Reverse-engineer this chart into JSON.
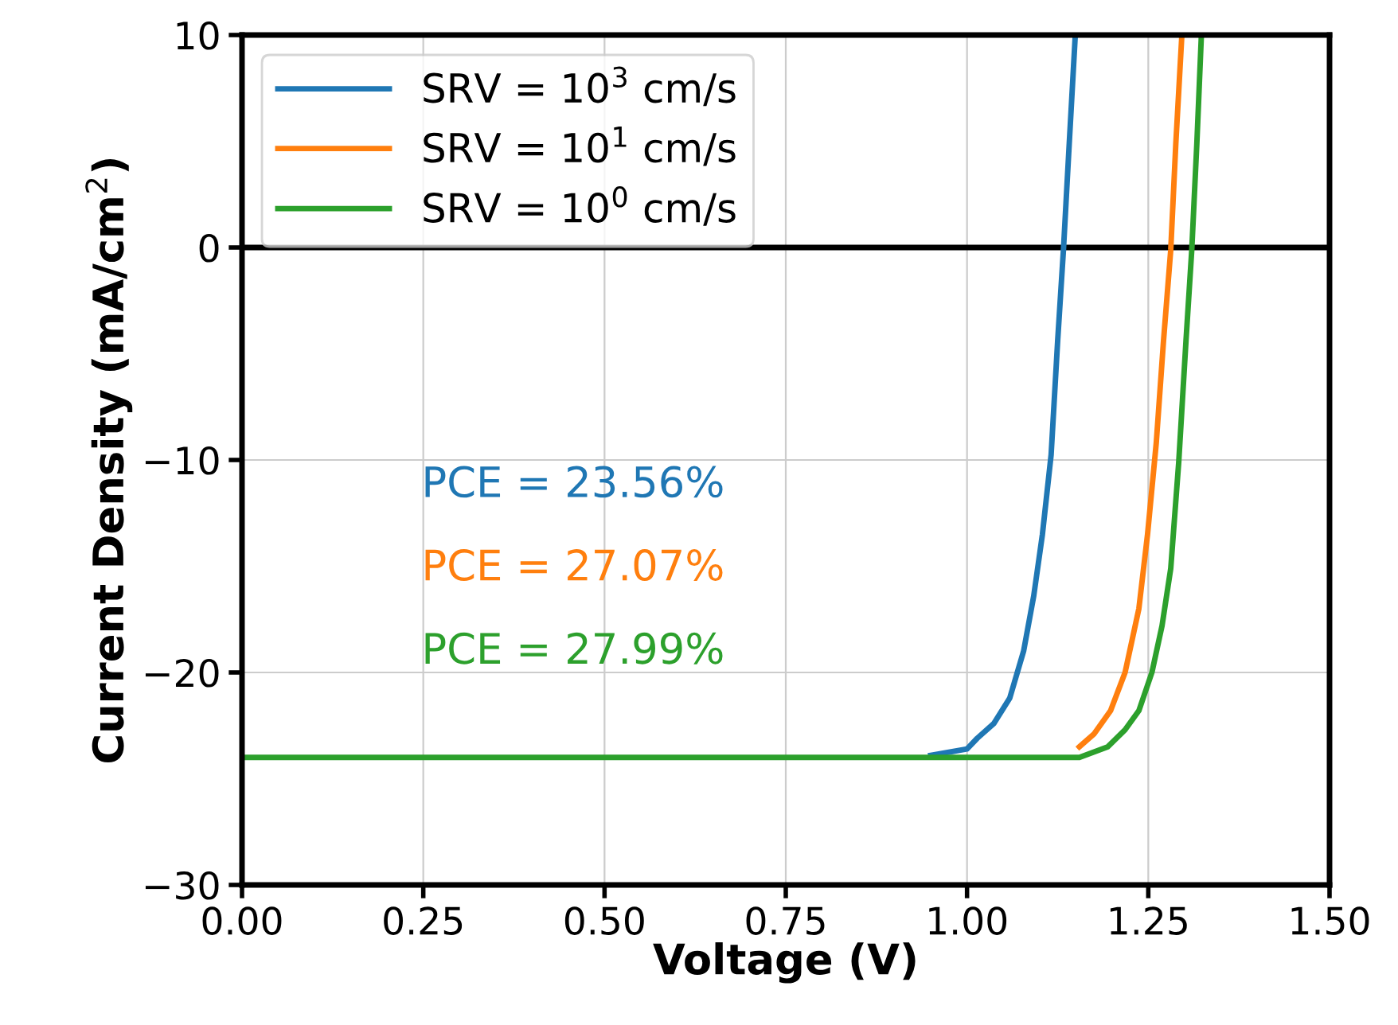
{
  "chart_data": {
    "type": "line",
    "xlabel": "Voltage (V)",
    "ylabel": "Current Density (mA/cm$^{2}$)",
    "xlim": [
      0,
      1.5
    ],
    "ylim": [
      -30,
      10
    ],
    "xticks": [
      {
        "value": 0,
        "label": "0.00"
      },
      {
        "value": 0.25,
        "label": "0.25"
      },
      {
        "value": 0.5,
        "label": "0.50"
      },
      {
        "value": 0.75,
        "label": "0.75"
      },
      {
        "value": 1,
        "label": "1.00"
      },
      {
        "value": 1.25,
        "label": "1.25"
      },
      {
        "value": 1.5,
        "label": "1.50"
      }
    ],
    "yticks": [
      {
        "value": -30,
        "label": "−30"
      },
      {
        "value": -20,
        "label": "−20"
      },
      {
        "value": -10,
        "label": "−10"
      },
      0,
      10
    ],
    "grid": true,
    "legend": "top left",
    "ref_lines": [
      {
        "axis": "y",
        "value": 0,
        "color": "#000000"
      }
    ],
    "annotations": [
      "PCE = 23.56%",
      "PCE = 27.07%",
      "PCE = 27.99%"
    ],
    "series": [
      {
        "name": "SRV = 10$^{3}$ cm/s",
        "color": "#1f77b4",
        "x": [
          0.95,
          1.0,
          1.014,
          1.037,
          1.059,
          1.078,
          1.092,
          1.104,
          1.116,
          1.125,
          1.133,
          1.141,
          1.149
        ],
        "values": [
          -23.9,
          -23.6,
          -23.1,
          -22.4,
          -21.2,
          -19.0,
          -16.4,
          -13.5,
          -9.75,
          -4.4,
          -0.1,
          4.9,
          9.8
        ]
      },
      {
        "name": "SRV = 10$^{1}$ cm/s",
        "color": "#ff7f0e",
        "x": [
          1.155,
          1.175,
          1.198,
          1.218,
          1.237,
          1.249,
          1.261,
          1.271,
          1.281,
          1.288,
          1.296
        ],
        "values": [
          -23.5,
          -22.9,
          -21.8,
          -20.0,
          -17.0,
          -13.5,
          -9.2,
          -4.4,
          -0.1,
          4.9,
          9.8
        ]
      },
      {
        "name": "SRV = 10$^{0}$ cm/s",
        "color": "#2ca02c",
        "x": [
          0,
          0.5,
          1.0,
          1.155,
          1.194,
          1.218,
          1.237,
          1.255,
          1.269,
          1.281,
          1.292,
          1.302,
          1.31,
          1.317,
          1.323
        ],
        "values": [
          -24.0,
          -24.0,
          -24.0,
          -24.0,
          -23.5,
          -22.7,
          -21.8,
          -20.0,
          -17.8,
          -15.1,
          -10.1,
          -4.4,
          -0.1,
          4.9,
          9.8
        ]
      }
    ]
  }
}
